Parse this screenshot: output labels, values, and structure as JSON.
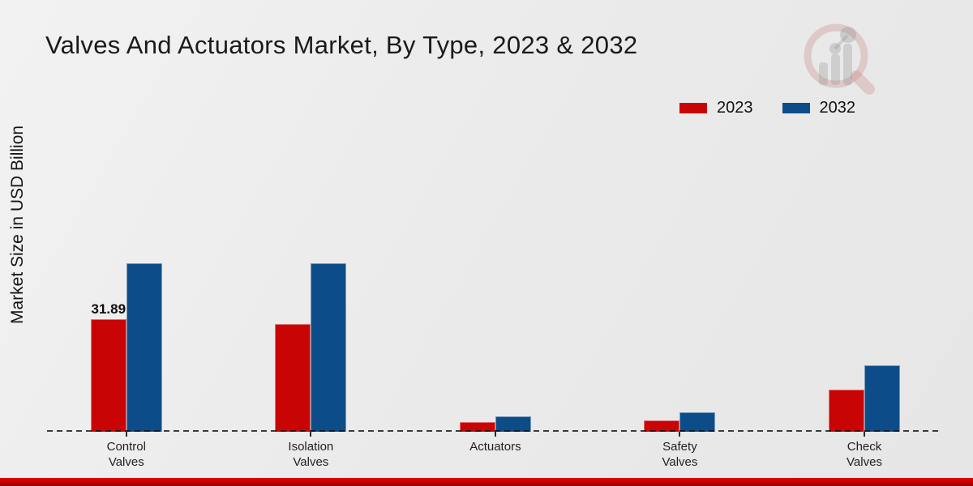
{
  "page": {
    "title": "Valves And Actuators Market, By Type, 2023 & 2032"
  },
  "chart_data": {
    "type": "bar",
    "title": "Valves And Actuators Market, By Type, 2023 & 2032",
    "xlabel": "",
    "ylabel": "Market Size in USD Billion",
    "categories": [
      "Control Valves",
      "Isolation Valves",
      "Actuators",
      "Safety Valves",
      "Check Valves"
    ],
    "category_label_lines": [
      [
        "Control",
        "Valves"
      ],
      [
        "Isolation",
        "Valves"
      ],
      [
        "Actuators"
      ],
      [
        "Safety",
        "Valves"
      ],
      [
        "Check",
        "Valves"
      ]
    ],
    "series": [
      {
        "name": "2023",
        "color": "#c80404",
        "values": [
          31.89,
          30.5,
          2.8,
          3.3,
          11.9
        ]
      },
      {
        "name": "2032",
        "color": "#0c4c88",
        "values": [
          47.7,
          47.7,
          4.4,
          5.6,
          18.8
        ]
      }
    ],
    "annotations": [
      {
        "series": "2023",
        "category": "Control Valves",
        "text": "31.89"
      }
    ],
    "ylim": [
      0,
      50
    ],
    "grid": false,
    "baseline_style": "black-dashed",
    "legend_position": "top-right"
  },
  "branding": {
    "logo_icon": "magnifier-growth-chart-watermark",
    "accent_red": "#c40000",
    "accent_blue": "#0c4c88"
  }
}
